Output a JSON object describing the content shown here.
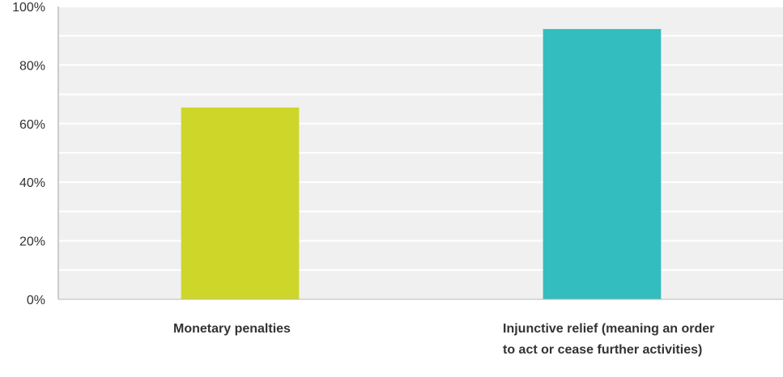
{
  "chart_data": {
    "type": "bar",
    "categories": [
      "Monetary penalties",
      "Injunctive relief (meaning an order to act or cease further activities)"
    ],
    "values": [
      65.5,
      92.3
    ],
    "ylim": [
      0,
      100
    ],
    "yticks": [
      0,
      20,
      40,
      60,
      80,
      100
    ],
    "ytick_labels": [
      "0%",
      "20%",
      "40%",
      "60%",
      "80%",
      "100%"
    ],
    "colors": [
      "#cfd62a",
      "#33bdbe"
    ],
    "grid": true,
    "title": "",
    "xlabel": "",
    "ylabel": ""
  }
}
